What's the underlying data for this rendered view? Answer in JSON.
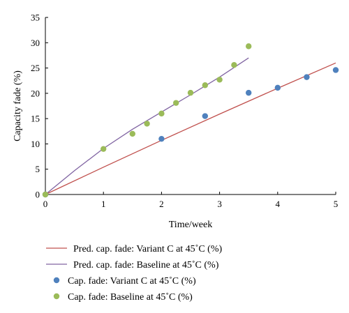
{
  "chart_data": {
    "type": "scatter",
    "xlabel": "Time/week",
    "ylabel": "Capacity fade (%)",
    "xlim": [
      0,
      5
    ],
    "ylim": [
      0,
      35
    ],
    "xticks": [
      0,
      1,
      2,
      3,
      4,
      5
    ],
    "yticks": [
      0,
      5,
      10,
      15,
      20,
      25,
      30,
      35
    ],
    "grid": false,
    "legend_position": "bottom",
    "series": [
      {
        "name": "Pred. cap. fade: Variant C at 45˚C (%)",
        "kind": "line",
        "color": "#c0504d",
        "x": [
          0,
          1,
          2,
          3,
          4,
          5
        ],
        "y": [
          0,
          5.4,
          10.7,
          15.9,
          21.0,
          26.0
        ]
      },
      {
        "name": "Pred. cap. fade: Baseline at 45˚C (%)",
        "kind": "line",
        "color": "#8064a2",
        "x": [
          0,
          0.5,
          1,
          1.5,
          2,
          2.5,
          3,
          3.5
        ],
        "y": [
          0,
          4.7,
          9.1,
          12.9,
          16.3,
          19.7,
          23.2,
          27.0
        ]
      },
      {
        "name": "Cap. fade: Variant C at 45˚C (%)",
        "kind": "points",
        "color": "#4f81bd",
        "x": [
          0,
          2,
          2.75,
          3.5,
          4,
          4.5,
          5
        ],
        "y": [
          0,
          11,
          15.5,
          20.1,
          21.1,
          23.2,
          24.6
        ]
      },
      {
        "name": "Cap. fade: Baseline at 45˚C (%)",
        "kind": "points",
        "color": "#9bbb59",
        "x": [
          0,
          1,
          1.5,
          1.75,
          2,
          2.25,
          2.5,
          2.75,
          3,
          3.25,
          3.5
        ],
        "y": [
          0,
          9,
          12,
          14,
          16,
          18.1,
          20.1,
          21.6,
          22.7,
          25.6,
          29.3
        ]
      }
    ]
  }
}
